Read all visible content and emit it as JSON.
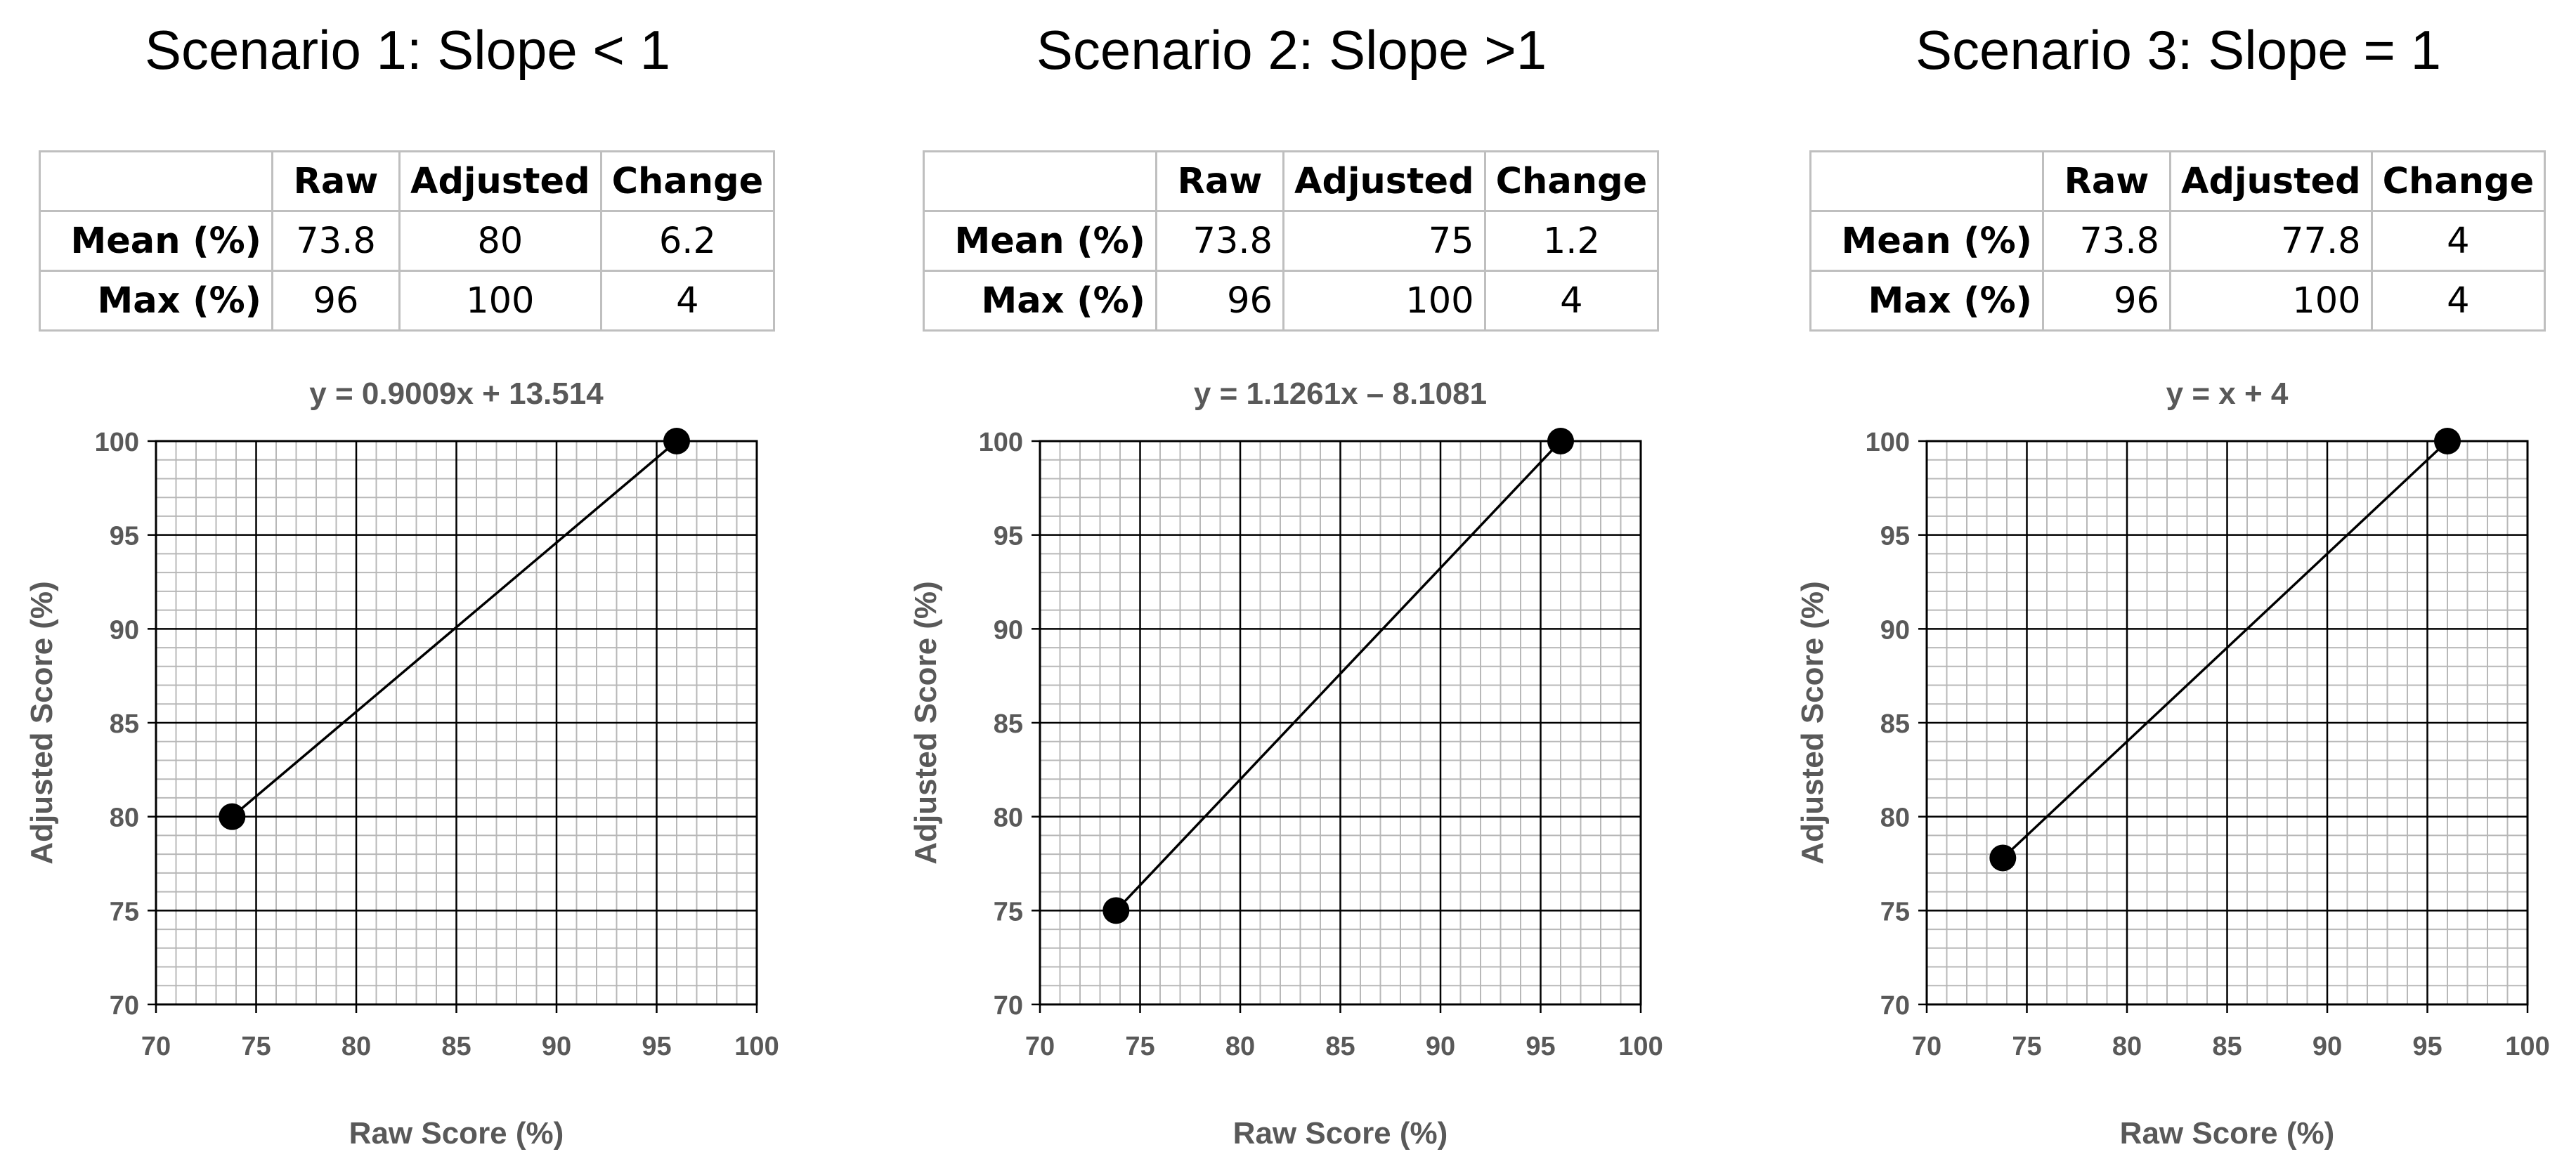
{
  "chart_data": [
    {
      "type": "line",
      "title": "Scenario 1: Slope < 1",
      "table": {
        "headers": [
          "",
          "Raw",
          "Adjusted",
          "Change"
        ],
        "rows": [
          {
            "label": "Mean (%)",
            "raw": "73.8",
            "adjusted": "80",
            "change": "6.2"
          },
          {
            "label": "Max (%)",
            "raw": "96",
            "adjusted": "100",
            "change": "4"
          }
        ],
        "align": [
          "center",
          "center",
          "center"
        ]
      },
      "equation": "y = 0.9009x + 13.514",
      "xlabel": "Raw Score (%)",
      "ylabel": "Adjusted Score (%)",
      "xlim": [
        70,
        100
      ],
      "ylim": [
        70,
        100
      ],
      "xticks": [
        "70",
        "75",
        "80",
        "85",
        "90",
        "95",
        "100"
      ],
      "yticks": [
        "70",
        "75",
        "80",
        "85",
        "90",
        "95",
        "100"
      ],
      "grid": true,
      "points": [
        {
          "x": 73.8,
          "y": 80
        },
        {
          "x": 96,
          "y": 100
        }
      ]
    },
    {
      "type": "line",
      "title": "Scenario 2: Slope >1",
      "table": {
        "headers": [
          "",
          "Raw",
          "Adjusted",
          "Change"
        ],
        "rows": [
          {
            "label": "Mean (%)",
            "raw": "73.8",
            "adjusted": "75",
            "change": "1.2"
          },
          {
            "label": "Max (%)",
            "raw": "96",
            "adjusted": "100",
            "change": "4"
          }
        ],
        "align": [
          "right",
          "right",
          "center"
        ]
      },
      "equation": "y = 1.1261x – 8.1081",
      "xlabel": "Raw Score (%)",
      "ylabel": "Adjusted Score (%)",
      "xlim": [
        70,
        100
      ],
      "ylim": [
        70,
        100
      ],
      "xticks": [
        "70",
        "75",
        "80",
        "85",
        "90",
        "95",
        "100"
      ],
      "yticks": [
        "70",
        "75",
        "80",
        "85",
        "90",
        "95",
        "100"
      ],
      "grid": true,
      "points": [
        {
          "x": 73.8,
          "y": 75
        },
        {
          "x": 96,
          "y": 100
        }
      ]
    },
    {
      "type": "line",
      "title": "Scenario 3: Slope = 1",
      "table": {
        "headers": [
          "",
          "Raw",
          "Adjusted",
          "Change"
        ],
        "rows": [
          {
            "label": "Mean (%)",
            "raw": "73.8",
            "adjusted": "77.8",
            "change": "4"
          },
          {
            "label": "Max (%)",
            "raw": "96",
            "adjusted": "100",
            "change": "4"
          }
        ],
        "align": [
          "right",
          "right",
          "center"
        ]
      },
      "equation": "y = x + 4",
      "xlabel": "Raw Score (%)",
      "ylabel": "Adjusted Score (%)",
      "xlim": [
        70,
        100
      ],
      "ylim": [
        70,
        100
      ],
      "xticks": [
        "70",
        "75",
        "80",
        "85",
        "90",
        "95",
        "100"
      ],
      "yticks": [
        "70",
        "75",
        "80",
        "85",
        "90",
        "95",
        "100"
      ],
      "grid": true,
      "points": [
        {
          "x": 73.8,
          "y": 77.8
        },
        {
          "x": 96,
          "y": 100
        }
      ]
    }
  ]
}
